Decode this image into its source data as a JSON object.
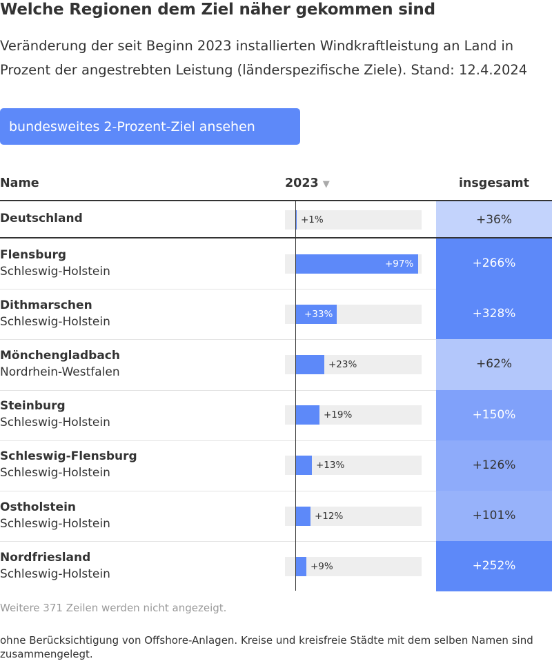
{
  "title": "Welche Regionen dem Ziel näher gekommen sind",
  "subtitle": "Veränderung der seit Beginn 2023 installierten Windkraftleistung an Land in Prozent der angestrebten Leistung (länderspezifische Ziele). Stand: 12.4.2024",
  "button_label": "bundesweites 2-Prozent-Ziel ansehen",
  "columns": {
    "name": "Name",
    "year": "2023",
    "year_sort_icon": "▼",
    "total": "insgesamt"
  },
  "chart_data": {
    "type": "table",
    "bar_column": "2023",
    "bar_range": [
      0,
      100
    ],
    "rows": [
      {
        "name": "Deutschland",
        "region": "",
        "value_2023": 1,
        "label_2023": "+1%",
        "total": 36,
        "total_label": "+36%",
        "total_color": "#c3d3fc",
        "total_text_color": "#333333"
      },
      {
        "name": "Flensburg",
        "region": "Schleswig-Holstein",
        "value_2023": 97,
        "label_2023": "+97%",
        "total": 266,
        "total_label": "+266%",
        "total_color": "#5d89f9",
        "total_text_color": "#ffffff"
      },
      {
        "name": "Dithmarschen",
        "region": "Schleswig-Holstein",
        "value_2023": 33,
        "label_2023": "+33%",
        "total": 328,
        "total_label": "+328%",
        "total_color": "#5d89f9",
        "total_text_color": "#ffffff"
      },
      {
        "name": "Mönchengladbach",
        "region": "Nordrhein-Westfalen",
        "value_2023": 23,
        "label_2023": "+23%",
        "total": 62,
        "total_label": "+62%",
        "total_color": "#b3c7fb",
        "total_text_color": "#333333"
      },
      {
        "name": "Steinburg",
        "region": "Schleswig-Holstein",
        "value_2023": 19,
        "label_2023": "+19%",
        "total": 150,
        "total_label": "+150%",
        "total_color": "#80a1fa",
        "total_text_color": "#ffffff"
      },
      {
        "name": "Schleswig-Flensburg",
        "region": "Schleswig-Holstein",
        "value_2023": 13,
        "label_2023": "+13%",
        "total": 126,
        "total_label": "+126%",
        "total_color": "#8eabfa",
        "total_text_color": "#333333"
      },
      {
        "name": "Ostholstein",
        "region": "Schleswig-Holstein",
        "value_2023": 12,
        "label_2023": "+12%",
        "total": 101,
        "total_label": "+101%",
        "total_color": "#97b2fa",
        "total_text_color": "#333333"
      },
      {
        "name": "Nordfriesland",
        "region": "Schleswig-Holstein",
        "value_2023": 9,
        "label_2023": "+9%",
        "total": 252,
        "total_label": "+252%",
        "total_color": "#5d89f9",
        "total_text_color": "#ffffff"
      }
    ]
  },
  "more_rows_text": "Weitere 371 Zeilen werden nicht angezeigt.",
  "footnote": "ohne Berücksichtigung von Offshore-Anlagen. Kreise und kreisfreie Städte mit dem selben Namen sind zusammengelegt.",
  "colors": {
    "accent": "#5d89f9",
    "track": "#eeeeee",
    "text": "#333333",
    "muted": "#999999"
  }
}
